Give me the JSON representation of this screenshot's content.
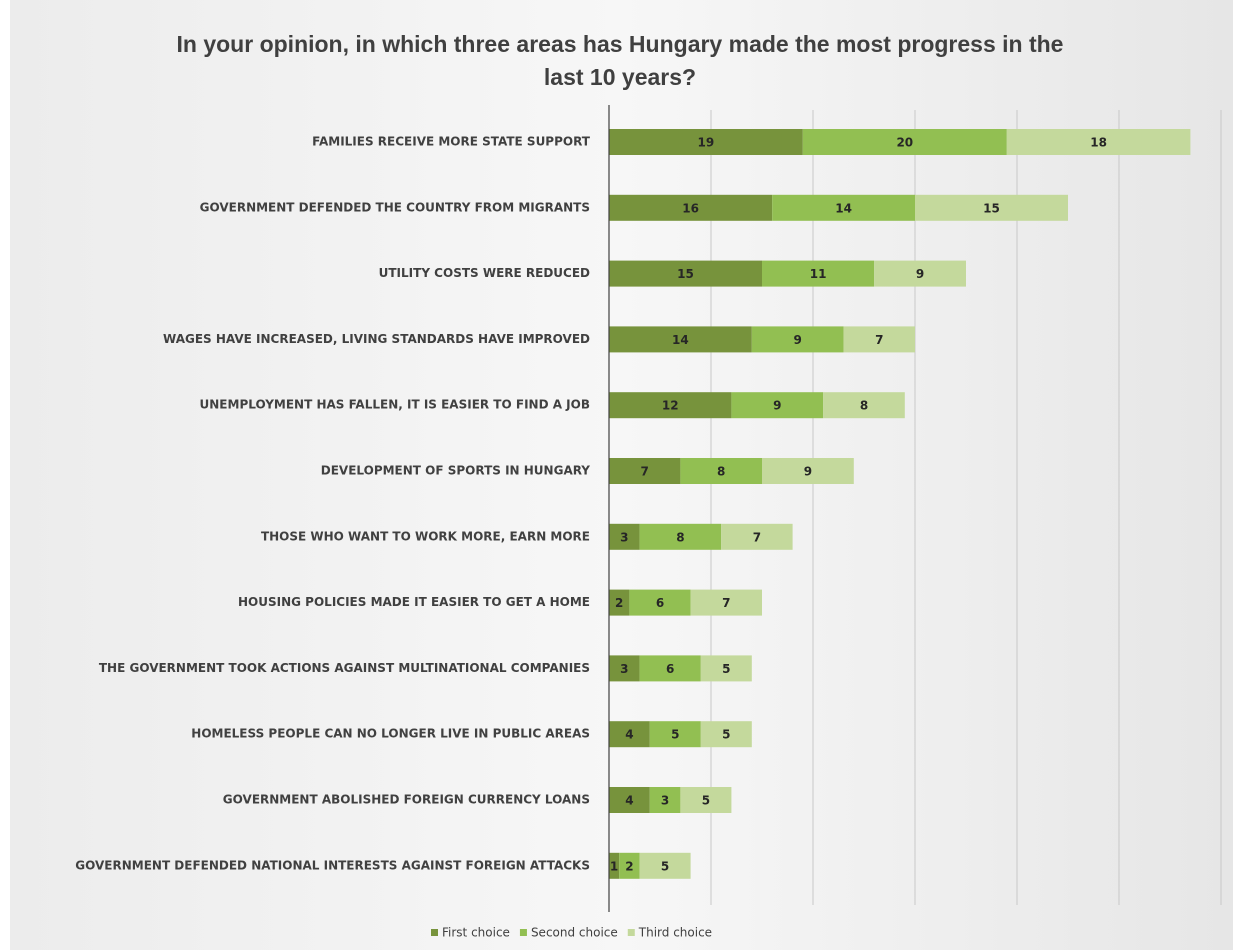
{
  "chart_data": {
    "type": "stacked-bar-horizontal",
    "title": "In your opinion, in which three areas has Hungary made the most progress in the last 10 years?",
    "categories": [
      "FAMILIES RECEIVE MORE STATE SUPPORT",
      "GOVERNMENT DEFENDED THE COUNTRY FROM MIGRANTS",
      "UTILITY COSTS WERE REDUCED",
      "WAGES HAVE INCREASED, LIVING STANDARDS HAVE IMPROVED",
      "UNEMPLOYMENT HAS FALLEN, IT IS EASIER TO FIND A JOB",
      "DEVELOPMENT OF SPORTS IN HUNGARY",
      "THOSE WHO WANT TO WORK MORE, EARN MORE",
      "HOUSING POLICIES MADE IT EASIER TO GET A HOME",
      "THE GOVERNMENT TOOK ACTIONS AGAINST MULTINATIONAL COMPANIES",
      "HOMELESS PEOPLE CAN NO LONGER LIVE IN PUBLIC AREAS",
      "GOVERNMENT ABOLISHED FOREIGN CURRENCY LOANS",
      "GOVERNMENT DEFENDED NATIONAL INTERESTS AGAINST FOREIGN ATTACKS"
    ],
    "series": [
      {
        "name": "First choice",
        "color": "#77933c",
        "values": [
          19,
          16,
          15,
          14,
          12,
          7,
          3,
          2,
          3,
          4,
          4,
          1
        ]
      },
      {
        "name": "Second choice",
        "color": "#92bf52",
        "values": [
          20,
          14,
          11,
          9,
          9,
          8,
          8,
          6,
          6,
          5,
          3,
          2
        ]
      },
      {
        "name": "Third choice",
        "color": "#c4d99c",
        "values": [
          18,
          15,
          9,
          7,
          8,
          9,
          7,
          7,
          5,
          5,
          5,
          5
        ]
      }
    ],
    "xlim": [
      0,
      60
    ],
    "xticks": [
      10,
      20,
      30,
      40,
      50,
      60
    ],
    "tick_labels": false,
    "grid": true,
    "legend": "bottom"
  }
}
